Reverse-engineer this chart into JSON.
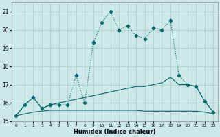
{
  "xlabel": "Humidex (Indice chaleur)",
  "x_values": [
    0,
    1,
    2,
    3,
    4,
    5,
    6,
    7,
    8,
    9,
    10,
    11,
    12,
    13,
    14,
    15,
    16,
    17,
    18,
    19,
    20,
    21,
    22,
    23
  ],
  "line1_y": [
    15.3,
    15.9,
    16.3,
    15.7,
    15.9,
    15.9,
    15.9,
    17.5,
    16.0,
    19.3,
    20.4,
    21.0,
    20.0,
    20.2,
    19.7,
    19.5,
    20.1,
    20.0,
    20.5,
    17.5,
    17.0,
    16.9,
    16.1,
    15.5
  ],
  "line2_y": [
    15.3,
    15.9,
    16.3,
    15.7,
    15.9,
    16.0,
    16.1,
    16.2,
    16.3,
    16.4,
    16.5,
    16.6,
    16.7,
    16.8,
    16.9,
    16.9,
    17.0,
    17.1,
    17.4,
    17.0,
    17.0,
    16.9,
    16.1,
    15.5
  ],
  "line3_y": [
    15.3,
    15.4,
    15.5,
    15.55,
    15.6,
    15.6,
    15.6,
    15.6,
    15.6,
    15.6,
    15.6,
    15.6,
    15.6,
    15.6,
    15.6,
    15.55,
    15.55,
    15.55,
    15.55,
    15.55,
    15.55,
    15.55,
    15.5,
    15.4
  ],
  "bg_color": "#cce8e8",
  "grid_color": "#aacccc",
  "line_color": "#006666",
  "ylim": [
    15.0,
    21.5
  ],
  "xlim": [
    -0.5,
    23.5
  ],
  "yticks": [
    15,
    16,
    17,
    18,
    19,
    20,
    21
  ],
  "xticks": [
    0,
    1,
    2,
    3,
    4,
    5,
    6,
    7,
    8,
    9,
    10,
    11,
    12,
    13,
    14,
    15,
    16,
    17,
    18,
    19,
    20,
    21,
    22,
    23
  ]
}
